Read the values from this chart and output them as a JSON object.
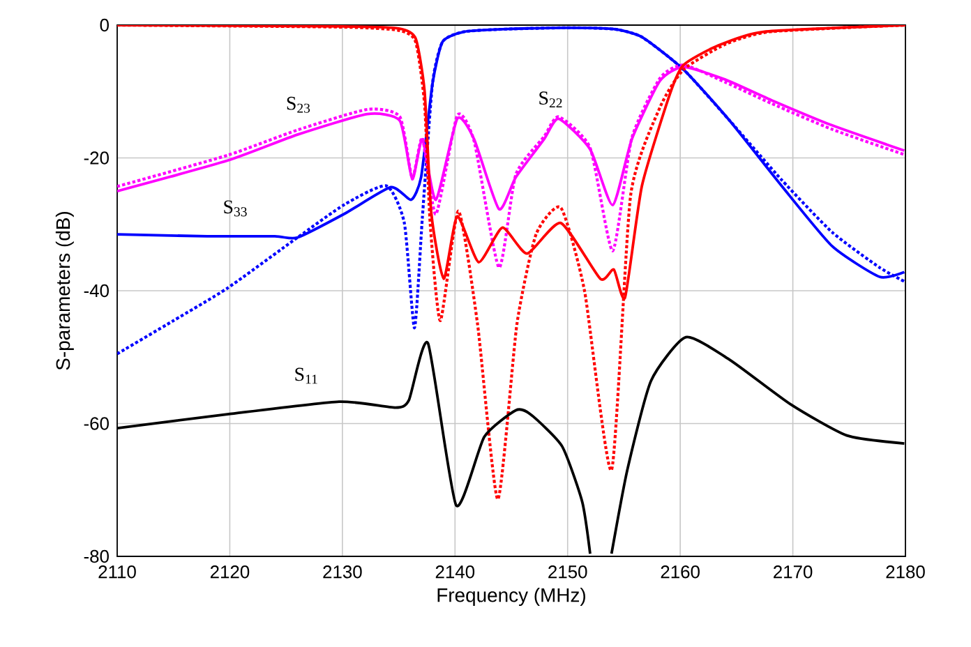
{
  "chart_data": {
    "type": "line",
    "xlabel": "Frequency (MHz)",
    "ylabel": "S-parameters (dB)",
    "xlim": [
      2110,
      2180
    ],
    "ylim": [
      -80,
      0
    ],
    "xticks": [
      2110,
      2120,
      2130,
      2140,
      2150,
      2160,
      2170,
      2180
    ],
    "yticks": [
      -80,
      -60,
      -40,
      -20,
      0
    ],
    "grid": true,
    "marker": "none",
    "annotations": [
      "S$_{23}$",
      "S$_{22}$",
      "S$_{33}$",
      "S$_{11}$"
    ],
    "series": [
      {
        "color": "#0000ff",
        "line_style": "dotted",
        "x": [
          2110,
          2115,
          2119.8,
          2126,
          2130.2,
          2133.9,
          2135.5,
          2136.4,
          2137.1,
          2138,
          2138.9,
          2140.8,
          2144.6,
          2150,
          2154.1,
          2156.6,
          2160.3,
          2164.4,
          2169,
          2173.5,
          2177.7,
          2179.9
        ],
        "values": [
          -49.5,
          -44.5,
          -39.6,
          -32,
          -27,
          -24.2,
          -29.8,
          -45.6,
          -29,
          -8.8,
          -2.5,
          -1,
          -0.6,
          -0.4,
          -0.6,
          -1.8,
          -6.7,
          -14.4,
          -23.3,
          -31.2,
          -36.5,
          -38.6
        ]
      },
      {
        "color": "#0000ff",
        "line_style": "solid",
        "x": [
          2110,
          2118,
          2124,
          2126,
          2130.2,
          2134.3,
          2136.1,
          2137,
          2138,
          2138.9,
          2140.8,
          2144.6,
          2150,
          2154.1,
          2156.6,
          2160.3,
          2164.4,
          2169,
          2173.5,
          2177.7,
          2179.9
        ],
        "values": [
          -31.5,
          -31.8,
          -31.8,
          -32,
          -28.4,
          -24.4,
          -26.3,
          -22.8,
          -8.8,
          -2.5,
          -1,
          -0.6,
          -0.4,
          -0.6,
          -1.8,
          -6.7,
          -14.4,
          -24.2,
          -33.3,
          -37.9,
          -37.2
        ]
      },
      {
        "color": "#ff00ff",
        "line_style": "dotted",
        "x": [
          2110,
          2119.8,
          2126,
          2132.2,
          2135.1,
          2136.2,
          2137.1,
          2138.3,
          2140.2,
          2141.7,
          2143.9,
          2145.4,
          2147.9,
          2149.2,
          2152,
          2154,
          2155.7,
          2158.2,
          2160.3,
          2164,
          2168.1,
          2173.5,
          2179.9
        ],
        "values": [
          -24.3,
          -19.6,
          -15.8,
          -12.7,
          -13.8,
          -23,
          -17,
          -28.5,
          -13.6,
          -17.5,
          -36.5,
          -22.5,
          -16.8,
          -13.8,
          -18.5,
          -34,
          -17,
          -8,
          -6,
          -8.6,
          -11.8,
          -15.7,
          -19.5
        ]
      },
      {
        "color": "#ff00ff",
        "line_style": "solid",
        "x": [
          2110,
          2119.8,
          2126,
          2132.2,
          2135.1,
          2136.2,
          2137.1,
          2138.3,
          2140.2,
          2141.7,
          2143.9,
          2145.4,
          2147.9,
          2149.2,
          2152,
          2154,
          2155.7,
          2158.2,
          2160.3,
          2164,
          2168.1,
          2173.5,
          2179.9
        ],
        "values": [
          -25,
          -20.4,
          -16.5,
          -13.4,
          -14.4,
          -23.2,
          -17.2,
          -26.3,
          -14.1,
          -17.2,
          -27.7,
          -22.9,
          -17.2,
          -14.1,
          -18.7,
          -27.1,
          -17.2,
          -8.4,
          -6.3,
          -8.2,
          -11.3,
          -15.1,
          -18.9
        ]
      },
      {
        "color": "#ff0000",
        "line_style": "dotted",
        "x": [
          2110,
          2130,
          2135,
          2136.5,
          2137.3,
          2137.8,
          2138.7,
          2140.3,
          2142,
          2143.8,
          2145.5,
          2147.2,
          2149.4,
          2151.5,
          2153.9,
          2155.6,
          2158.2,
          2160.3,
          2164,
          2168,
          2180
        ],
        "values": [
          0,
          -0.3,
          -0.8,
          -2.5,
          -12,
          -30,
          -44.5,
          -28,
          -45,
          -71.4,
          -45,
          -31.5,
          -27.5,
          -40,
          -67,
          -25.6,
          -12.4,
          -6.7,
          -2.9,
          -1,
          0
        ]
      },
      {
        "color": "#ff0000",
        "line_style": "solid",
        "x": [
          2110,
          2130,
          2135,
          2136.5,
          2137.3,
          2137.9,
          2139,
          2140.2,
          2142.1,
          2144.2,
          2146.4,
          2149.4,
          2152.9,
          2154.1,
          2155.1,
          2156.6,
          2159.1,
          2160.3,
          2163.2,
          2167.4,
          2180
        ],
        "values": [
          0,
          -0.2,
          -0.5,
          -2,
          -10,
          -28.4,
          -38.2,
          -28.8,
          -35.7,
          -30.5,
          -34.4,
          -29.8,
          -38.2,
          -36.8,
          -41,
          -24.2,
          -10.3,
          -6,
          -3.2,
          -1,
          0
        ]
      },
      {
        "color": "#000000",
        "line_style": "solid",
        "x": [
          2110,
          2119.8,
          2129.7,
          2134.7,
          2135.9,
          2137.6,
          2140.1,
          2142.6,
          2145.4,
          2146.7,
          2149.5,
          2151.3,
          2152,
          2153,
          2153.9,
          2155.3,
          2157.4,
          2160.5,
          2164.4,
          2169.8,
          2174.8,
          2179.9
        ],
        "values": [
          -60.7,
          -58.6,
          -56.7,
          -57.6,
          -56.5,
          -47.9,
          -72.3,
          -62,
          -58,
          -58.6,
          -63.4,
          -71.8,
          -79.6,
          null,
          -79.6,
          -67,
          -53.6,
          -47,
          -50.4,
          -57.1,
          -61.8,
          -63
        ]
      }
    ]
  }
}
